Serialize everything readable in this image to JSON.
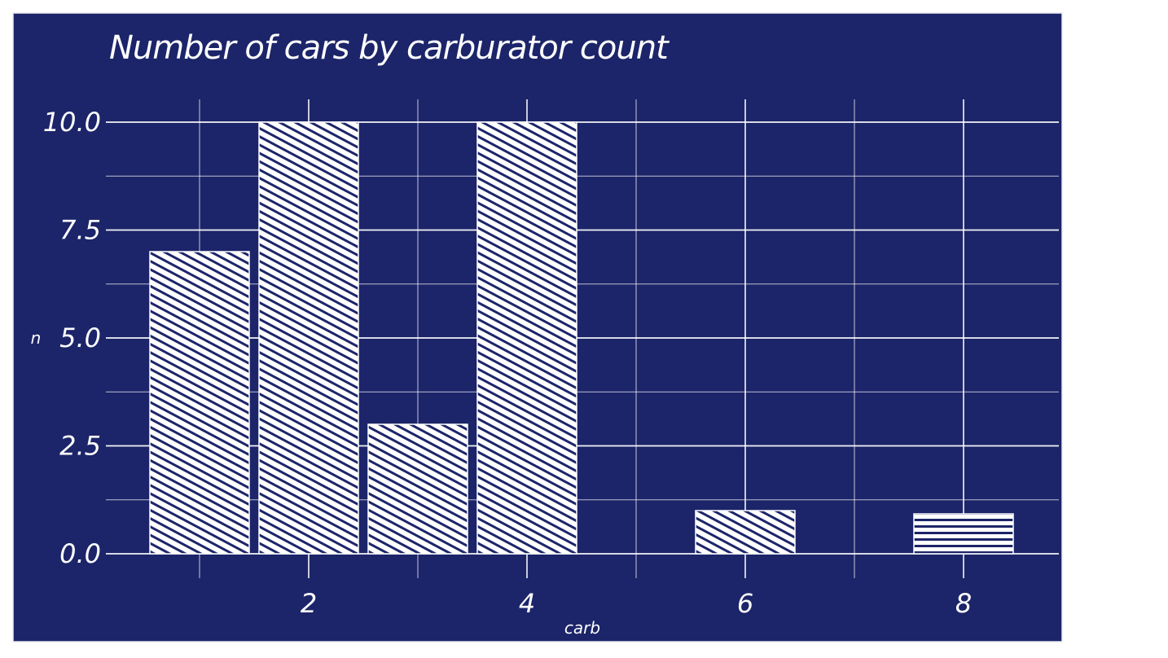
{
  "chart_data": {
    "type": "bar",
    "title": "Number of cars by carburator count",
    "xlabel": "carb",
    "ylabel": "n",
    "x": [
      1,
      2,
      3,
      4,
      6,
      8
    ],
    "values": [
      7,
      10,
      3,
      10,
      1,
      1
    ],
    "xlim": [
      0.5,
      8.5
    ],
    "ylim": [
      0,
      10
    ],
    "x_ticks": [
      2,
      4,
      6,
      8
    ],
    "y_ticks": [
      0,
      2.5,
      5,
      7.5,
      10
    ],
    "x_tick_labels": [
      "2",
      "4",
      "6",
      "8"
    ],
    "y_tick_labels": [
      "0.0",
      "2.5",
      "5.0",
      "7.5",
      "10.0"
    ],
    "grid": true,
    "style": "hand-drawn hachure",
    "colors": {
      "background": "#1c2569",
      "bar_fill": "#ffffff",
      "grid": "#ffffff",
      "text": "#ffffff"
    }
  }
}
